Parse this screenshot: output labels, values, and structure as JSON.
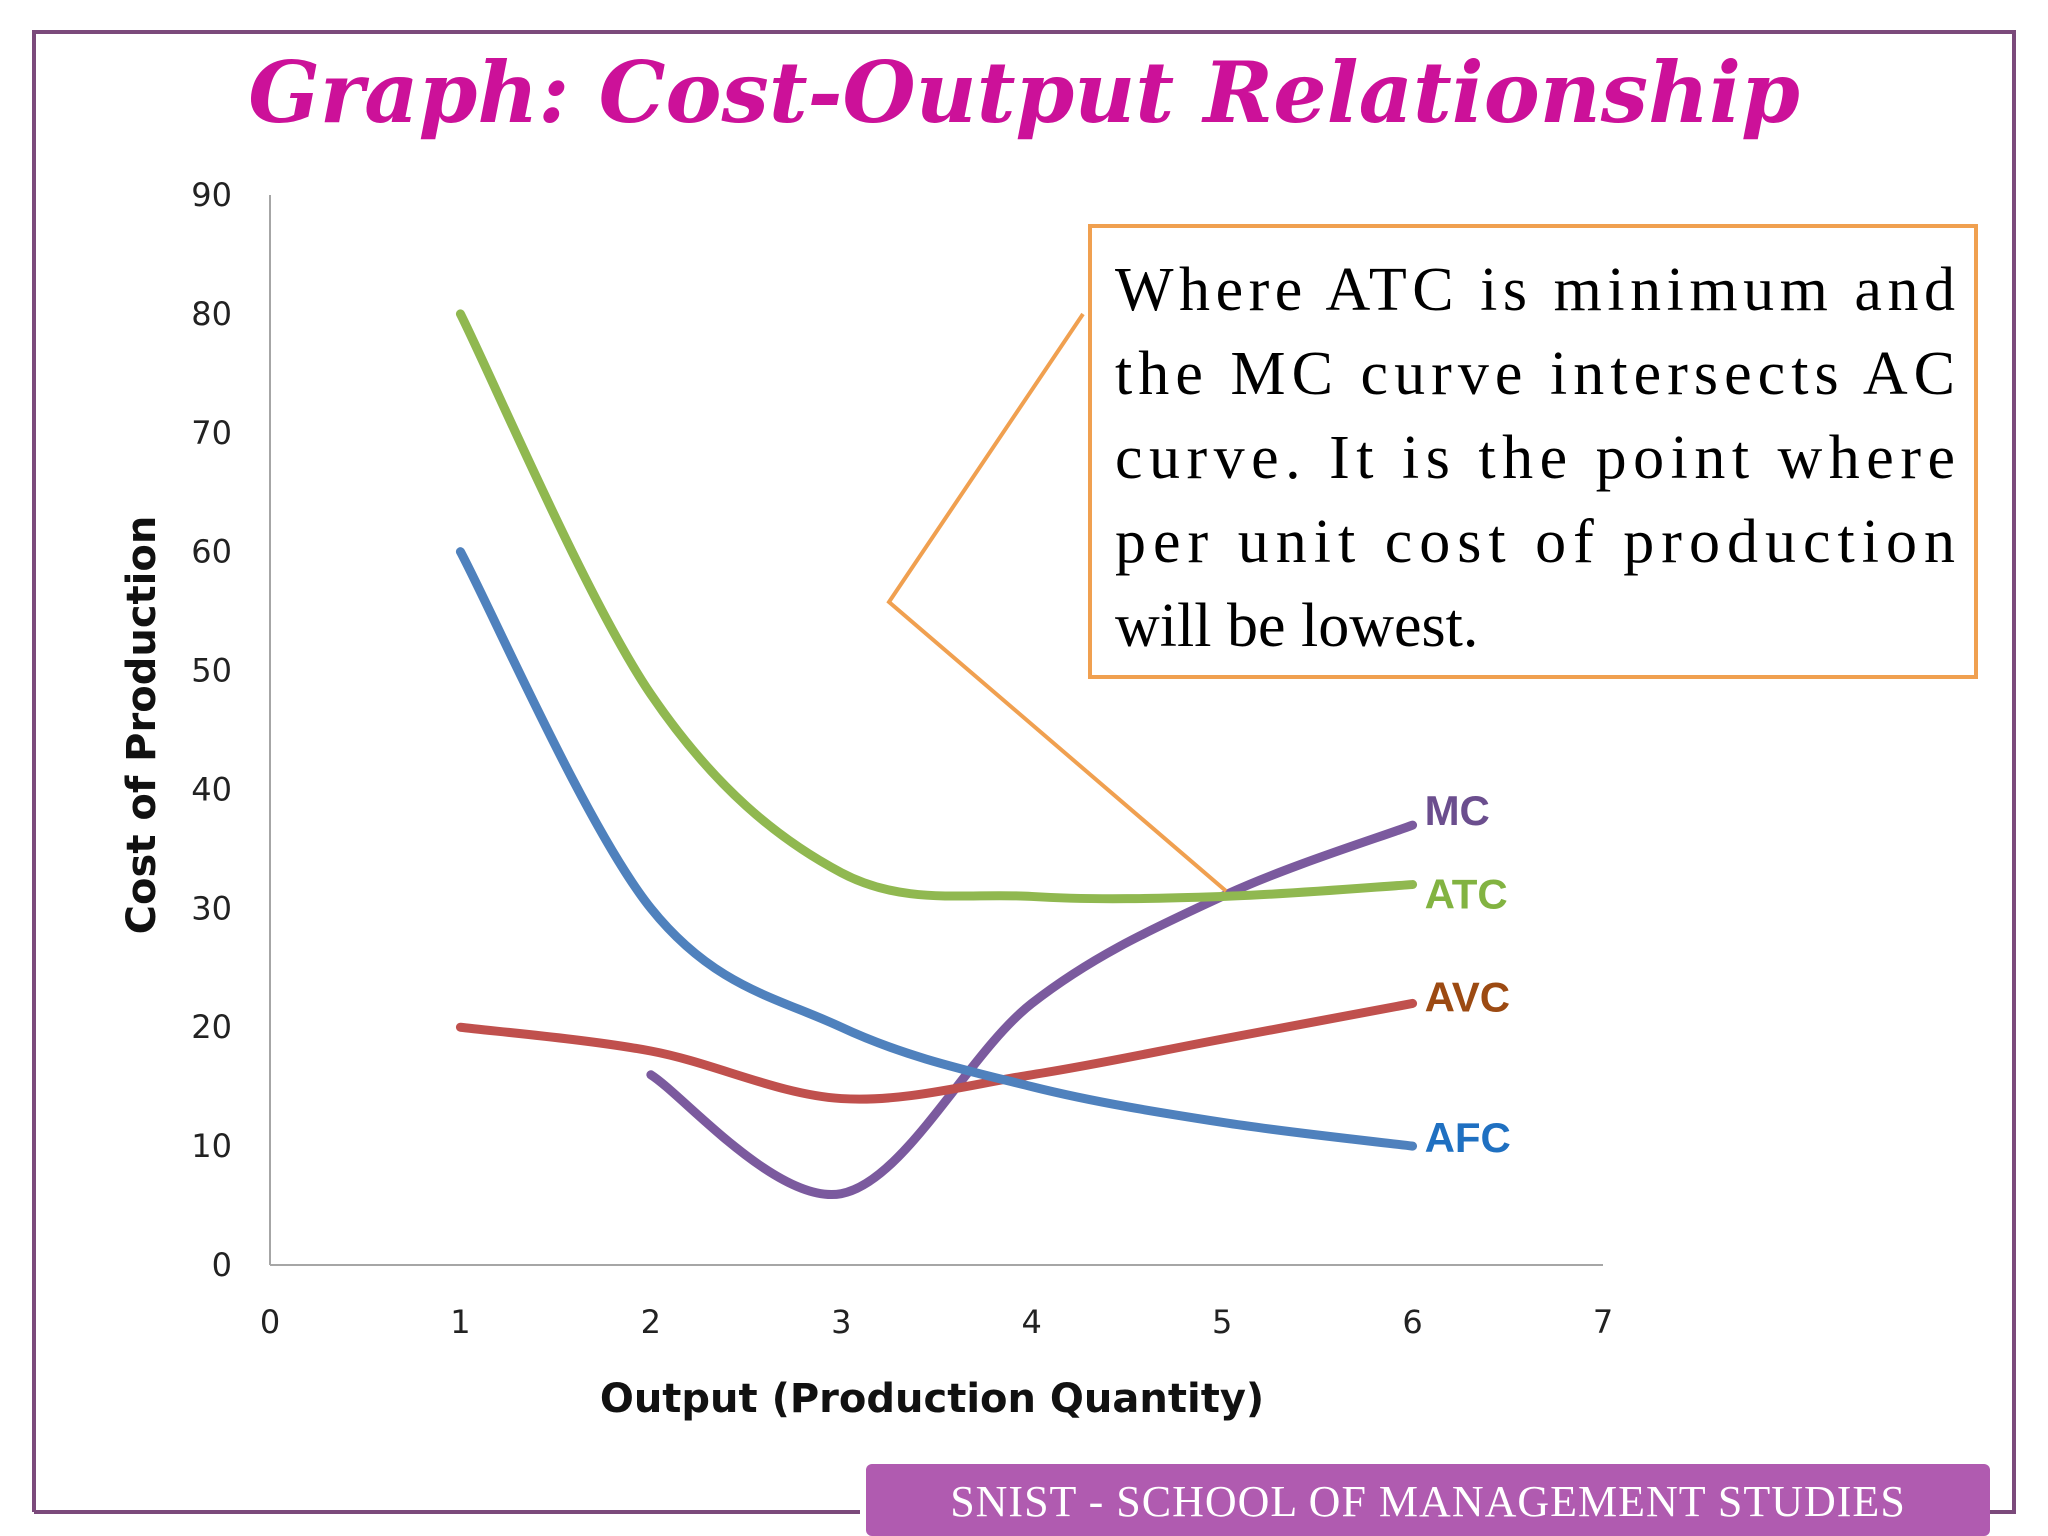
{
  "colors": {
    "title": "#cc1199",
    "frame": "#7b4a7b",
    "axis": "#a6a6a6",
    "callout_border": "#f0a050",
    "footer_bg": "#b05bb0",
    "MC": "#7b5a9e",
    "ATC": "#90b850",
    "AVC": "#c0504d",
    "AFC": "#4f81bd",
    "AVC_label": "#9c4a12",
    "AFC_label": "#1f70c1",
    "MC_label": "#6b4e8e",
    "ATC_label": "#82b341"
  },
  "slide": {
    "title": "Graph: Cost-Output Relationship",
    "footer": "SNIST - SCHOOL OF MANAGEMENT STUDIES"
  },
  "callout": {
    "lines": [
      "Where ATC is minimum and",
      "the MC curve intersects AC",
      "curve. It is the point where",
      "per unit cost of production",
      "will be lowest."
    ]
  },
  "chart_data": {
    "type": "line",
    "xlabel": "Output (Production Quantity)",
    "ylabel": "Cost of Production",
    "xlim": [
      0,
      7
    ],
    "ylim": [
      0,
      90
    ],
    "x_ticks": [
      0,
      1,
      2,
      3,
      4,
      5,
      6,
      7
    ],
    "y_ticks": [
      0,
      10,
      20,
      30,
      40,
      50,
      60,
      70,
      80,
      90
    ],
    "grid": false,
    "series": [
      {
        "name": "MC",
        "x": [
          2,
          3,
          4,
          5,
          6
        ],
        "y": [
          16,
          6,
          22,
          31,
          37
        ]
      },
      {
        "name": "ATC",
        "x": [
          1,
          2,
          3,
          4,
          5,
          6
        ],
        "y": [
          80,
          48,
          33,
          31,
          31,
          32
        ]
      },
      {
        "name": "AVC",
        "x": [
          1,
          2,
          3,
          4,
          5,
          6
        ],
        "y": [
          20,
          18,
          14,
          16,
          19,
          22
        ]
      },
      {
        "name": "AFC",
        "x": [
          1,
          2,
          3,
          4,
          5,
          6
        ],
        "y": [
          60,
          30,
          20,
          15,
          12,
          10
        ]
      }
    ]
  }
}
